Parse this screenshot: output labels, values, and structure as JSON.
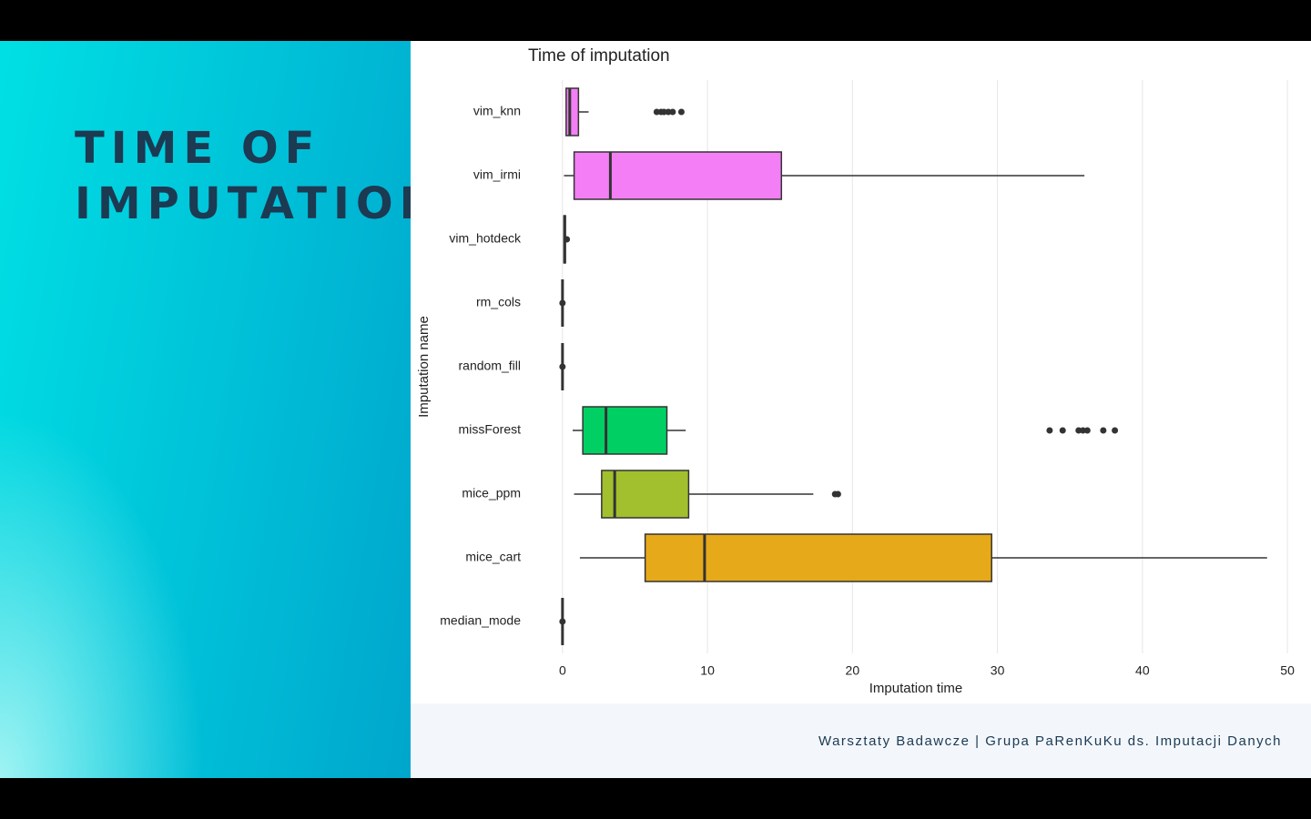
{
  "slide": {
    "title": "TIME OF IMPUTATION",
    "footer": "Warsztaty Badawcze | Grupa PaRenKuKu ds. Imputacji Danych"
  },
  "chart_data": {
    "type": "box",
    "title": "Time of imputation",
    "x_label": "Imputation time",
    "y_label": "Imputation name",
    "xlim": [
      -2,
      51
    ],
    "xticks": [
      0,
      10,
      20,
      30,
      40,
      50
    ],
    "grid": true,
    "boxes": [
      {
        "name": "vim_knn",
        "color": "#f47ef6",
        "whislo": 0.2,
        "q1": 0.25,
        "med": 0.5,
        "q3": 1.1,
        "whishi": 1.8,
        "fliers": [
          6.5,
          6.8,
          7.0,
          7.3,
          7.6,
          8.2
        ]
      },
      {
        "name": "vim_irmi",
        "color": "#f47ef6",
        "whislo": 0.1,
        "q1": 0.8,
        "med": 3.3,
        "q3": 15.1,
        "whishi": 36.0,
        "fliers": []
      },
      {
        "name": "vim_hotdeck",
        "color": "#00c1d4",
        "whislo": 0.1,
        "q1": 0.1,
        "med": 0.15,
        "q3": 0.2,
        "whishi": 0.2,
        "fliers": [
          0.3
        ]
      },
      {
        "name": "rm_cols",
        "color": "#00b9e3",
        "whislo": 0,
        "q1": 0,
        "med": 0,
        "q3": 0,
        "whishi": 0,
        "fliers": [
          0
        ]
      },
      {
        "name": "random_fill",
        "color": "#00bfc4",
        "whislo": 0,
        "q1": 0,
        "med": 0,
        "q3": 0,
        "whishi": 0,
        "fliers": [
          0
        ]
      },
      {
        "name": "missForest",
        "color": "#00d063",
        "whislo": 0.7,
        "q1": 1.4,
        "med": 3.0,
        "q3": 7.2,
        "whishi": 8.5,
        "fliers": [
          33.6,
          34.5,
          35.6,
          35.9,
          36.2,
          37.3,
          38.1
        ]
      },
      {
        "name": "mice_ppm",
        "color": "#a2c02d",
        "whislo": 0.8,
        "q1": 2.7,
        "med": 3.6,
        "q3": 8.7,
        "whishi": 17.3,
        "fliers": [
          18.8,
          19.0
        ]
      },
      {
        "name": "mice_cart",
        "color": "#e6a91a",
        "whislo": 1.2,
        "q1": 5.7,
        "med": 9.8,
        "q3": 29.6,
        "whishi": 48.6,
        "fliers": []
      },
      {
        "name": "median_mode",
        "color": "#f8766d",
        "whislo": 0,
        "q1": 0,
        "med": 0,
        "q3": 0,
        "whishi": 0,
        "fliers": [
          0
        ]
      }
    ]
  }
}
